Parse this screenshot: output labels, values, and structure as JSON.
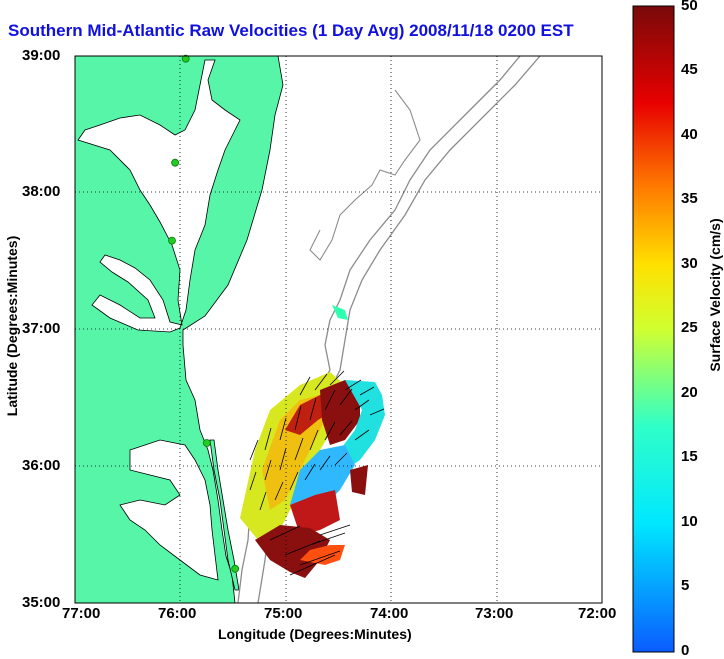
{
  "title": "Southern Mid-Atlantic Raw Velocities (1 Day Avg) 2008/11/18 0200 EST",
  "xlabel": "Longitude (Degrees:Minutes)",
  "ylabel": "Latitude (Degrees:Minutes)",
  "x_ticks": [
    "77:00",
    "76:00",
    "75:00",
    "74:00",
    "73:00",
    "72:00"
  ],
  "y_ticks": [
    "39:00",
    "38:00",
    "37:00",
    "36:00",
    "35:00"
  ],
  "colorbar": {
    "label": "Surface Velocity (cm/s)",
    "ticks": [
      "50",
      "45",
      "40",
      "35",
      "30",
      "25",
      "20",
      "15",
      "10",
      "5",
      "0"
    ],
    "min": 0,
    "max": 50
  },
  "colors": {
    "land": "#56f5a8",
    "water": "#ffffff",
    "bathymetry": "#8c8c8c",
    "coastline": "#000000",
    "stations": "#22cc22",
    "title": "#1010e0"
  },
  "chart_data": {
    "type": "map",
    "xlim": [
      -77.0,
      -72.0
    ],
    "ylim": [
      35.0,
      39.0
    ],
    "grid": true,
    "stations": [
      {
        "lon": -75.95,
        "lat": 38.98
      },
      {
        "lon": -76.05,
        "lat": 38.22
      },
      {
        "lon": -76.08,
        "lat": 37.65
      },
      {
        "lon": -75.75,
        "lat": 36.17
      },
      {
        "lon": -75.48,
        "lat": 35.25
      }
    ]
  }
}
